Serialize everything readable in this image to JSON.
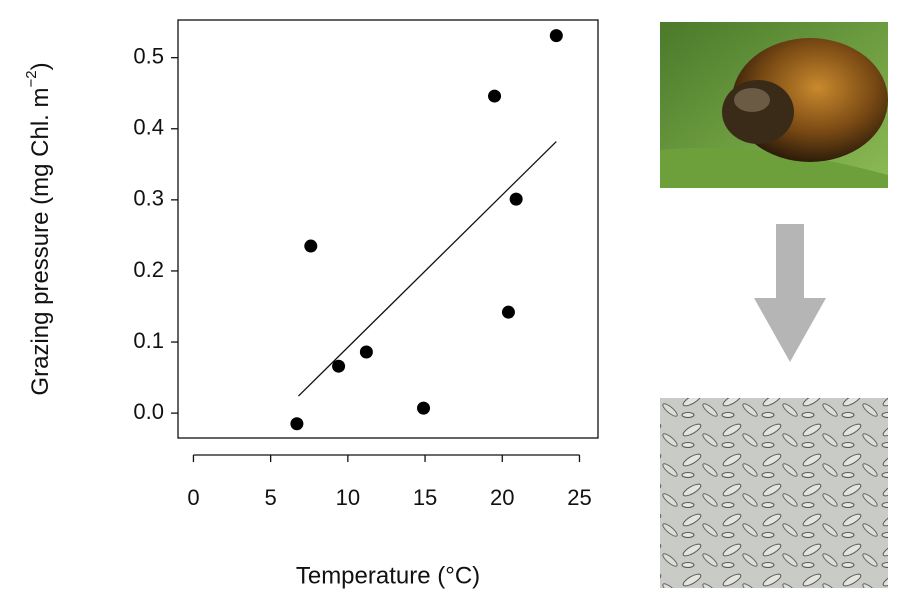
{
  "chart_data": {
    "type": "scatter",
    "x_label": "Temperature (°C)",
    "y_label": "Grazing pressure (mg Chl. m",
    "y_label_exponent": "−2",
    "y_label_close": ")",
    "x": [
      6.7,
      7.6,
      9.4,
      11.2,
      14.9,
      19.5,
      20.4,
      20.9,
      23.5
    ],
    "values": [
      -0.015,
      0.235,
      0.066,
      0.086,
      0.007,
      0.446,
      0.142,
      0.301,
      0.531
    ],
    "color": "#000000",
    "fit_line": {
      "x": [
        6.8,
        23.5
      ],
      "y": [
        0.024,
        0.382
      ]
    },
    "xlim": [
      -1,
      26.2
    ],
    "ylim": [
      -0.035,
      0.553
    ],
    "xticks": [
      0,
      5,
      10,
      15,
      20,
      25
    ],
    "yticks": [
      {
        "value": 0,
        "label": "0.0"
      },
      0.1,
      0.2,
      0.3,
      0.4,
      0.5
    ]
  }
}
